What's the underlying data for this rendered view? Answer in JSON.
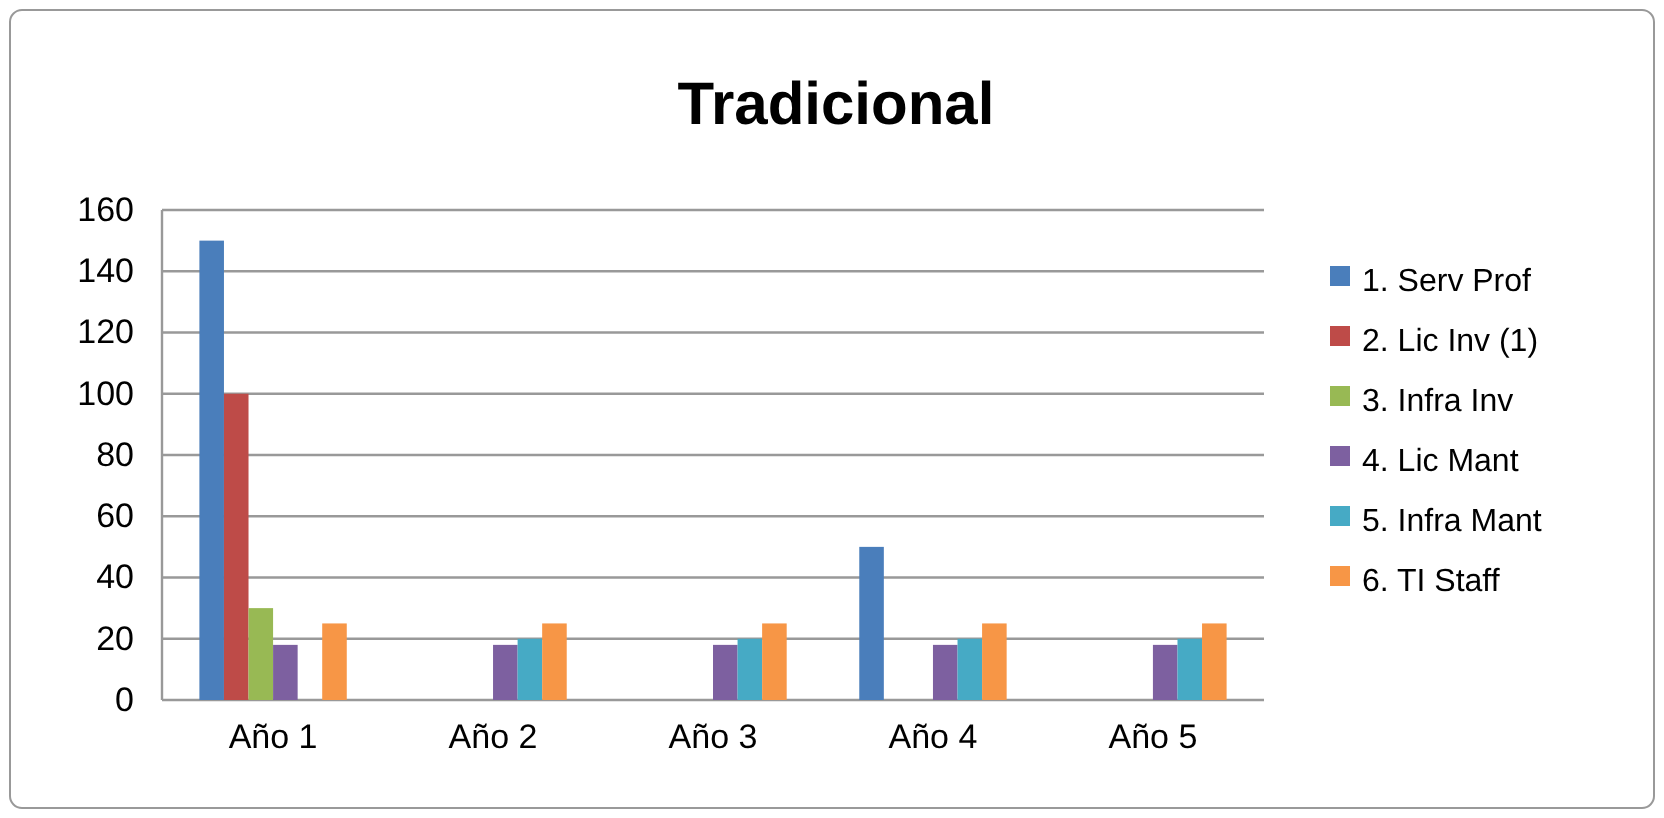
{
  "chart_data": {
    "type": "bar",
    "title": "Tradicional",
    "categories": [
      "Año 1",
      "Año 2",
      "Año 3",
      "Año 4",
      "Año 5"
    ],
    "series": [
      {
        "name": "1. Serv Prof",
        "color": "#4a7ebb",
        "values": [
          150,
          0,
          0,
          50,
          0
        ]
      },
      {
        "name": "2. Lic Inv (1)",
        "color": "#be4b48",
        "values": [
          100,
          0,
          0,
          0,
          0
        ]
      },
      {
        "name": "3. Infra Inv",
        "color": "#98b954",
        "values": [
          30,
          0,
          0,
          0,
          0
        ]
      },
      {
        "name": "4. Lic Mant",
        "color": "#7d60a0",
        "values": [
          18,
          18,
          18,
          18,
          18
        ]
      },
      {
        "name": "5. Infra Mant",
        "color": "#46aac5",
        "values": [
          0,
          20,
          20,
          20,
          20
        ]
      },
      {
        "name": "6. TI Staff",
        "color": "#f79646",
        "values": [
          25,
          25,
          25,
          25,
          25
        ]
      }
    ],
    "ylim": [
      0,
      160
    ],
    "yticks": [
      0,
      20,
      40,
      60,
      80,
      100,
      120,
      140,
      160
    ],
    "grid": "y",
    "legend": "right"
  }
}
